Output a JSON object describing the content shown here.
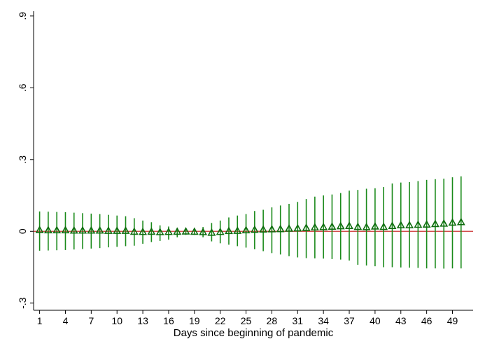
{
  "chart_data": {
    "type": "scatter",
    "title": "",
    "xlabel": "Days since beginning of pandemic",
    "ylabel": "",
    "x": [
      1,
      2,
      3,
      4,
      5,
      6,
      7,
      8,
      9,
      10,
      11,
      12,
      13,
      14,
      15,
      16,
      17,
      18,
      19,
      20,
      21,
      22,
      23,
      24,
      25,
      26,
      27,
      28,
      29,
      30,
      31,
      32,
      33,
      34,
      35,
      36,
      37,
      38,
      39,
      40,
      41,
      42,
      43,
      44,
      45,
      46,
      47,
      48,
      49,
      50
    ],
    "estimate": [
      0.005,
      0.004,
      0.004,
      0.004,
      0.003,
      0.003,
      0.003,
      0.003,
      0.002,
      0.002,
      0.002,
      -0.002,
      -0.003,
      -0.002,
      -0.004,
      -0.003,
      -0.002,
      -0.001,
      -0.002,
      -0.004,
      -0.006,
      -0.003,
      0.001,
      0.002,
      0.004,
      0.006,
      0.007,
      0.008,
      0.009,
      0.011,
      0.012,
      0.014,
      0.016,
      0.017,
      0.019,
      0.021,
      0.022,
      0.018,
      0.017,
      0.02,
      0.018,
      0.022,
      0.025,
      0.025,
      0.027,
      0.028,
      0.03,
      0.032,
      0.036,
      0.038
    ],
    "ci_low": [
      -0.081,
      -0.08,
      -0.079,
      -0.078,
      -0.076,
      -0.074,
      -0.072,
      -0.07,
      -0.067,
      -0.065,
      -0.062,
      -0.06,
      -0.052,
      -0.045,
      -0.04,
      -0.035,
      -0.025,
      -0.015,
      -0.015,
      -0.025,
      -0.042,
      -0.05,
      -0.056,
      -0.062,
      -0.068,
      -0.075,
      -0.083,
      -0.091,
      -0.097,
      -0.104,
      -0.109,
      -0.112,
      -0.113,
      -0.114,
      -0.116,
      -0.118,
      -0.122,
      -0.14,
      -0.143,
      -0.146,
      -0.15,
      -0.15,
      -0.151,
      -0.152,
      -0.153,
      -0.155,
      -0.155,
      -0.156,
      -0.155,
      -0.155
    ],
    "ci_high": [
      0.083,
      0.082,
      0.081,
      0.08,
      0.078,
      0.076,
      0.074,
      0.072,
      0.069,
      0.066,
      0.063,
      0.055,
      0.045,
      0.038,
      0.025,
      0.02,
      0.015,
      0.013,
      0.012,
      0.018,
      0.035,
      0.045,
      0.058,
      0.066,
      0.072,
      0.085,
      0.09,
      0.1,
      0.108,
      0.115,
      0.123,
      0.135,
      0.145,
      0.15,
      0.154,
      0.16,
      0.17,
      0.173,
      0.178,
      0.18,
      0.185,
      0.2,
      0.204,
      0.206,
      0.21,
      0.215,
      0.218,
      0.22,
      0.226,
      0.23
    ],
    "xticks": [
      1,
      4,
      7,
      10,
      13,
      16,
      19,
      22,
      25,
      28,
      31,
      34,
      37,
      40,
      43,
      46,
      49
    ],
    "yticks": [
      -0.3,
      0,
      0.3,
      0.6,
      0.9
    ],
    "ytick_labels": [
      "-.3",
      "0",
      ".3",
      ".6",
      ".9"
    ],
    "xlim": [
      0.3,
      51.4
    ],
    "ylim": [
      -0.33,
      0.92
    ],
    "reference_line_y": 0,
    "grid": false,
    "marker": "hollow-triangle",
    "colors": {
      "series": "#1a8a1a",
      "marker_stroke": "#0e6b0e",
      "reference_line": "#cc3333",
      "axis": "#000000"
    }
  }
}
